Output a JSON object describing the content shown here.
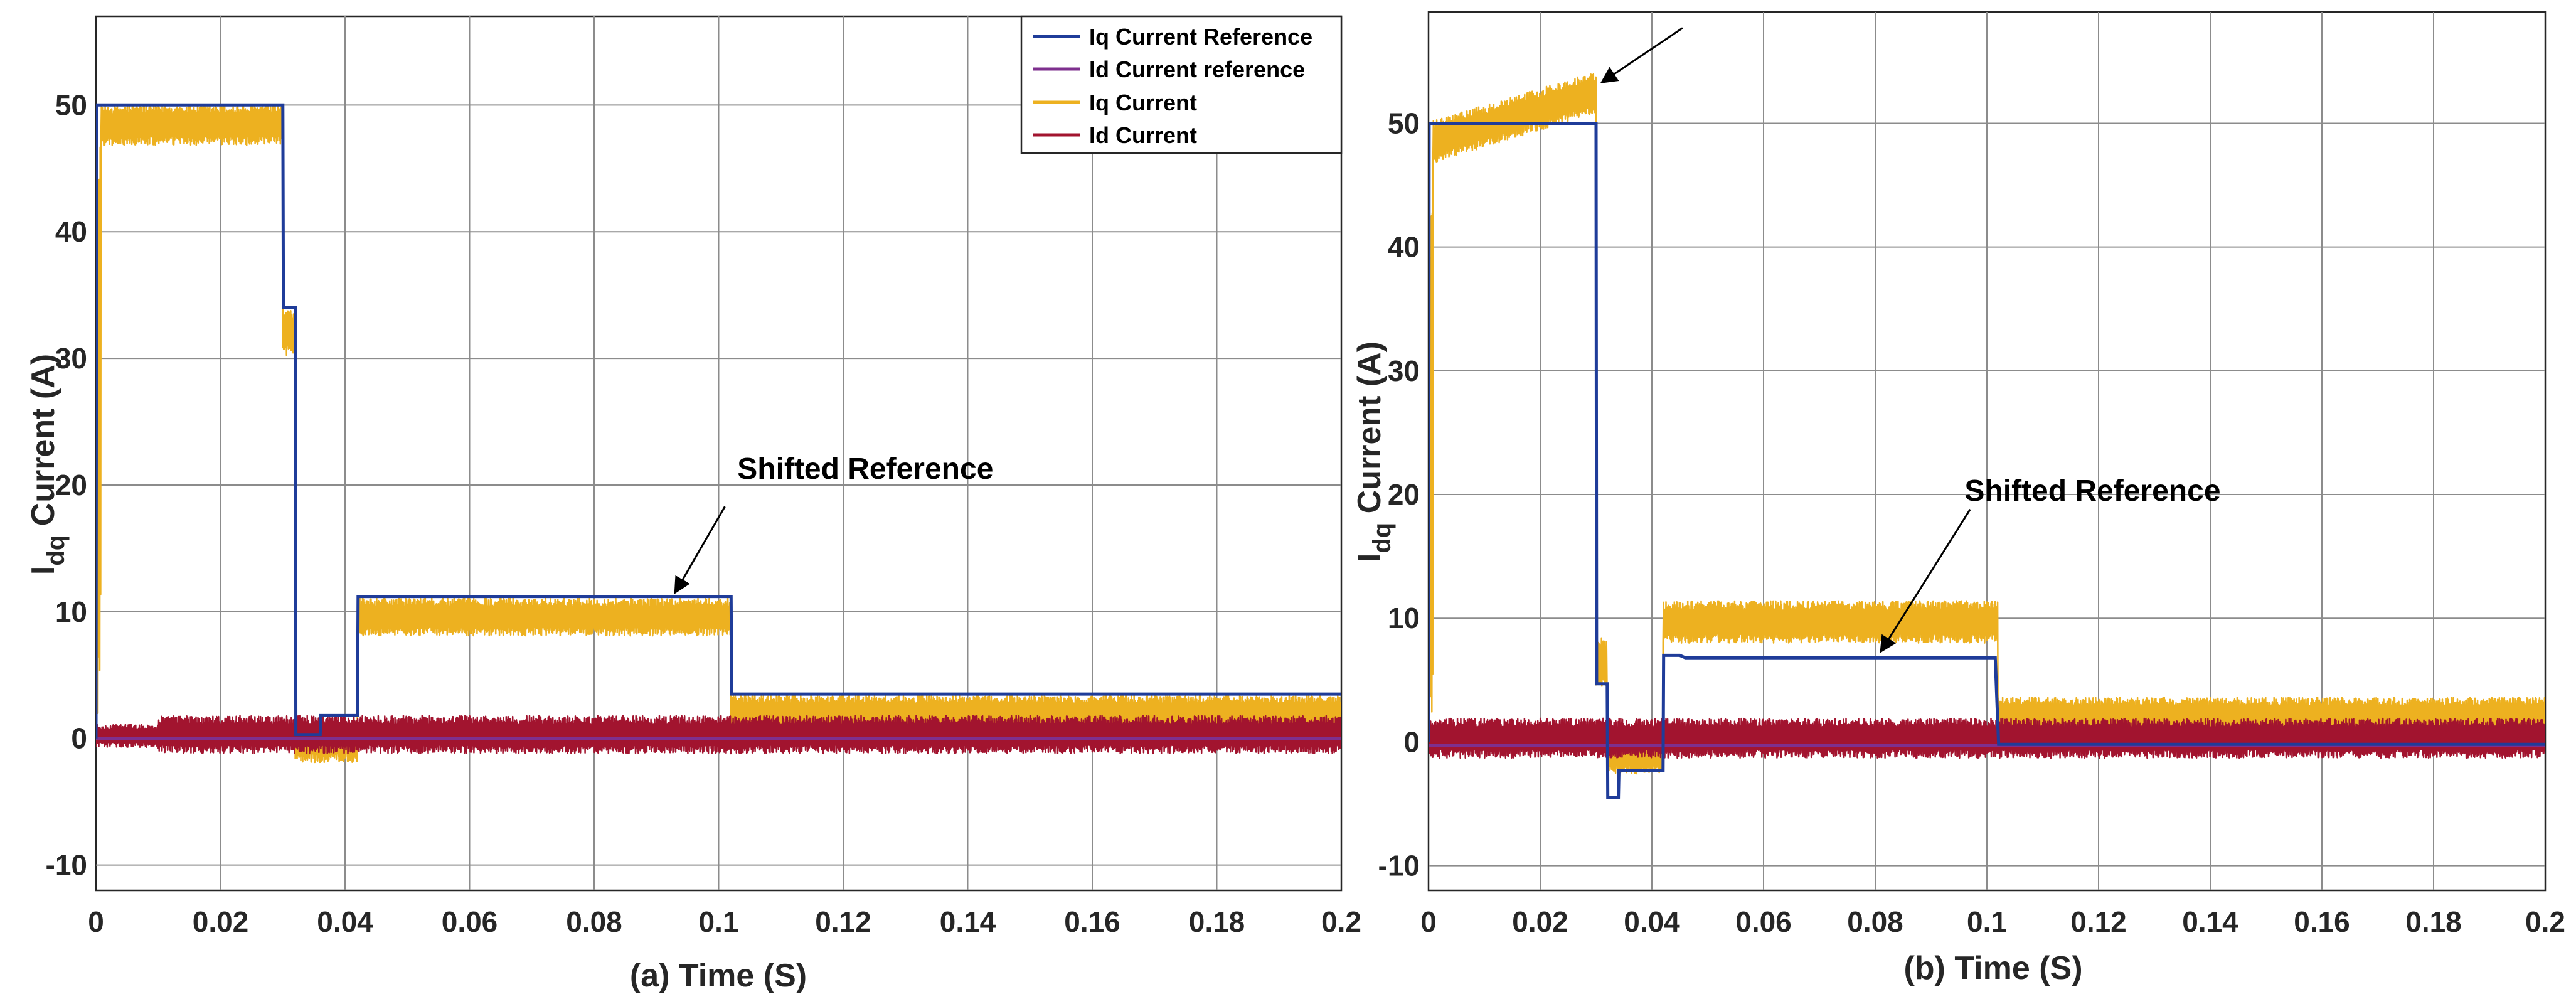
{
  "chart_data": [
    {
      "type": "line",
      "panel": "a",
      "xlabel": "(a) Time (S)",
      "ylabel": "I_dq Current (A)",
      "ylabel_main": "I",
      "ylabel_sub": "dq",
      "ylabel_rest": " Current (A)",
      "xlim": [
        0,
        0.2
      ],
      "ylim": [
        -12,
        57
      ],
      "xticks": [
        0,
        0.02,
        0.04,
        0.06,
        0.08,
        0.1,
        0.12,
        0.14,
        0.16,
        0.18,
        0.2
      ],
      "xtick_labels": [
        "0",
        "0.02",
        "0.04",
        "0.06",
        "0.08",
        "0.1",
        "0.12",
        "0.14",
        "0.16",
        "0.18",
        "0.2"
      ],
      "yticks": [
        -10,
        0,
        10,
        20,
        30,
        40,
        50
      ],
      "ytick_labels": [
        "-10",
        "0",
        "10",
        "20",
        "30",
        "40",
        "50"
      ],
      "grid": true,
      "legend": {
        "location": "top-right",
        "entries": [
          {
            "label": "Iq Current Reference",
            "color": "#1f3c99"
          },
          {
            "label": "Id Current reference",
            "color": "#7e2f8e"
          },
          {
            "label": "Iq Current",
            "color": "#edb120"
          },
          {
            "label": "Id Current",
            "color": "#a2142f"
          }
        ]
      },
      "annotations": [
        {
          "text": "Shifted Reference",
          "text_x": 0.103,
          "text_y": 20.5,
          "arrow_from": [
            0.101,
            18.3
          ],
          "arrow_to": [
            0.093,
            11.5
          ]
        }
      ],
      "series": [
        {
          "name": "Iq Current Reference",
          "color": "#1f3c99",
          "kind": "steps",
          "x": [
            0,
            0.0001,
            0.03,
            0.0301,
            0.032,
            0.0321,
            0.036,
            0.0361,
            0.042,
            0.0421,
            0.102,
            0.1021,
            0.2
          ],
          "y": [
            0,
            50,
            50,
            34,
            34,
            0.3,
            0.3,
            1.8,
            1.8,
            11.2,
            11.2,
            3.5,
            3.5
          ]
        },
        {
          "name": "Id Current reference",
          "color": "#7e2f8e",
          "kind": "steps",
          "x": [
            0,
            0.2
          ],
          "y": [
            0,
            0
          ]
        },
        {
          "name": "Iq Current",
          "color": "#edb120",
          "kind": "band",
          "segments": [
            {
              "x0": 0,
              "x1": 0.0008,
              "center": 25,
              "amp": 24
            },
            {
              "x0": 0.0008,
              "x1": 0.03,
              "center": 48.4,
              "amp": 1.6
            },
            {
              "x0": 0.03,
              "x1": 0.032,
              "center": 32,
              "amp": 1.8
            },
            {
              "x0": 0.032,
              "x1": 0.042,
              "center": -0.3,
              "amp": 1.6
            },
            {
              "x0": 0.042,
              "x1": 0.102,
              "center": 9.6,
              "amp": 1.5
            },
            {
              "x0": 0.102,
              "x1": 0.2,
              "center": 2.0,
              "amp": 1.4
            }
          ]
        },
        {
          "name": "Id Current",
          "color": "#a2142f",
          "kind": "band",
          "segments": [
            {
              "x0": 0,
              "x1": 0.01,
              "center": 0.2,
              "amp": 0.9
            },
            {
              "x0": 0.01,
              "x1": 0.2,
              "center": 0.3,
              "amp": 1.5
            }
          ]
        }
      ]
    },
    {
      "type": "line",
      "panel": "b",
      "xlabel": "(b) Time (S)",
      "ylabel": "I_dq Current (A)",
      "ylabel_main": "I",
      "ylabel_sub": "dq",
      "ylabel_rest": " Current (A)",
      "xlim": [
        0,
        0.2
      ],
      "ylim": [
        -12,
        59
      ],
      "xticks": [
        0,
        0.02,
        0.04,
        0.06,
        0.08,
        0.1,
        0.12,
        0.14,
        0.16,
        0.18,
        0.2
      ],
      "xtick_labels": [
        "0",
        "0.02",
        "0.04",
        "0.06",
        "0.08",
        "0.1",
        "0.12",
        "0.14",
        "0.16",
        "0.18",
        "0.2"
      ],
      "yticks": [
        -10,
        0,
        10,
        20,
        30,
        40,
        50
      ],
      "ytick_labels": [
        "-10",
        "0",
        "10",
        "20",
        "30",
        "40",
        "50"
      ],
      "grid": true,
      "annotations": [
        {
          "text": "Shifted Reference",
          "text_x": 0.096,
          "text_y": 19.5,
          "arrow_from": [
            0.097,
            18.8
          ],
          "arrow_to": [
            0.081,
            7.3
          ]
        },
        {
          "text": "",
          "text_x": 0.0455,
          "text_y": 57.7,
          "arrow_from": [
            0.0455,
            57.7
          ],
          "arrow_to": [
            0.031,
            53.3
          ]
        }
      ],
      "series": [
        {
          "name": "Iq Current Reference",
          "color": "#1f3c99",
          "kind": "steps",
          "x": [
            0,
            0.0001,
            0.03,
            0.0301,
            0.032,
            0.0321,
            0.034,
            0.0341,
            0.042,
            0.0421,
            0.045,
            0.046,
            0.1015,
            0.1021,
            0.2
          ],
          "y": [
            0,
            50,
            50,
            4.7,
            4.7,
            -4.5,
            -4.5,
            -2.3,
            -2.3,
            7.0,
            7.0,
            6.8,
            6.8,
            -0.2,
            -0.2
          ]
        },
        {
          "name": "Id Current reference",
          "color": "#7e2f8e",
          "kind": "steps",
          "x": [
            0,
            0.2
          ],
          "y": [
            -0.3,
            -0.3
          ]
        },
        {
          "name": "Iq Current",
          "color": "#edb120",
          "kind": "band",
          "segments": [
            {
              "x0": 0,
              "x1": 0.0008,
              "center": 25,
              "amp": 24
            },
            {
              "x0": 0.0008,
              "x1": 0.03,
              "center": 48.5,
              "end_center": 52.5,
              "amp": 1.7
            },
            {
              "x0": 0.03,
              "x1": 0.032,
              "center": 6.5,
              "amp": 2.0
            },
            {
              "x0": 0.032,
              "x1": 0.042,
              "center": -0.8,
              "amp": 1.8
            },
            {
              "x0": 0.042,
              "x1": 0.102,
              "center": 9.7,
              "amp": 1.7
            },
            {
              "x0": 0.102,
              "x1": 0.2,
              "center": 2.0,
              "amp": 1.6
            }
          ]
        },
        {
          "name": "Id Current",
          "color": "#a2142f",
          "kind": "band",
          "segments": [
            {
              "x0": 0,
              "x1": 0.2,
              "center": 0.3,
              "amp": 1.6
            }
          ]
        }
      ]
    }
  ]
}
